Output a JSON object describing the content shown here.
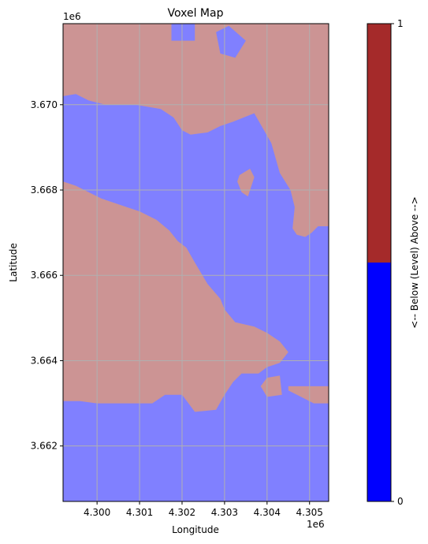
{
  "chart_data": {
    "type": "heatmap",
    "title": "Voxel Map",
    "xlabel": "Longitude",
    "ylabel": "Latitude",
    "x_offset_label": "1e6",
    "y_offset_label": "1e6",
    "xlim": [
      4299200,
      4305450
    ],
    "ylim": [
      3660700,
      3671900
    ],
    "x_ticks": [
      {
        "value": 4300000,
        "label": "4.300"
      },
      {
        "value": 4301000,
        "label": "4.301"
      },
      {
        "value": 4302000,
        "label": "4.302"
      },
      {
        "value": 4303000,
        "label": "4.303"
      },
      {
        "value": 4304000,
        "label": "4.304"
      },
      {
        "value": 4305000,
        "label": "4.305"
      }
    ],
    "y_ticks": [
      {
        "value": 3662000,
        "label": "3.662"
      },
      {
        "value": 3664000,
        "label": "3.664"
      },
      {
        "value": 3666000,
        "label": "3.666"
      },
      {
        "value": 3668000,
        "label": "3.668"
      },
      {
        "value": 3670000,
        "label": "3.670"
      }
    ],
    "grid": true,
    "classes": [
      {
        "value": 0,
        "color": "#8080ff"
      },
      {
        "value": 1,
        "color": "#cc9494"
      }
    ],
    "regions": [
      {
        "class": 1,
        "polygon": [
          [
            4299200,
            3671900
          ],
          [
            4301750,
            3671900
          ],
          [
            4301750,
            3671500
          ],
          [
            4302300,
            3671500
          ],
          [
            4302300,
            3671900
          ],
          [
            4305450,
            3671900
          ],
          [
            4305450,
            3667150
          ],
          [
            4305200,
            3667150
          ],
          [
            4305050,
            3667000
          ],
          [
            4304900,
            3666900
          ],
          [
            4304700,
            3666950
          ],
          [
            4304600,
            3667100
          ],
          [
            4304650,
            3667600
          ],
          [
            4304550,
            3668000
          ],
          [
            4304300,
            3668400
          ],
          [
            4304100,
            3669100
          ],
          [
            4303700,
            3669800
          ],
          [
            4303200,
            3669600
          ],
          [
            4302900,
            3669500
          ],
          [
            4302600,
            3669350
          ],
          [
            4302200,
            3669300
          ],
          [
            4302000,
            3669400
          ],
          [
            4301800,
            3669700
          ],
          [
            4301500,
            3669900
          ],
          [
            4301200,
            3669950
          ],
          [
            4300900,
            3670000
          ],
          [
            4300600,
            3670000
          ],
          [
            4300200,
            3670000
          ],
          [
            4299800,
            3670100
          ],
          [
            4299500,
            3670250
          ],
          [
            4299200,
            3670200
          ]
        ]
      },
      {
        "class": 0,
        "polygon": [
          [
            4302800,
            3671700
          ],
          [
            4303100,
            3671850
          ],
          [
            4303500,
            3671500
          ],
          [
            4303250,
            3671100
          ],
          [
            4302900,
            3671200
          ]
        ]
      },
      {
        "class": 1,
        "polygon": [
          [
            4299200,
            3668200
          ],
          [
            4299500,
            3668100
          ],
          [
            4300100,
            3667800
          ],
          [
            4300700,
            3667600
          ],
          [
            4301000,
            3667500
          ],
          [
            4301400,
            3667300
          ],
          [
            4301700,
            3667050
          ],
          [
            4301900,
            3666800
          ],
          [
            4302100,
            3666650
          ],
          [
            4302300,
            3666300
          ],
          [
            4302600,
            3665800
          ],
          [
            4302900,
            3665450
          ],
          [
            4303000,
            3665200
          ],
          [
            4303250,
            3664900
          ],
          [
            4303700,
            3664800
          ],
          [
            4304000,
            3664650
          ],
          [
            4304300,
            3664450
          ],
          [
            4304500,
            3664200
          ],
          [
            4304300,
            3663950
          ],
          [
            4304000,
            3663850
          ],
          [
            4303800,
            3663700
          ],
          [
            4303400,
            3663700
          ],
          [
            4303200,
            3663500
          ],
          [
            4303000,
            3663200
          ],
          [
            4302800,
            3662850
          ],
          [
            4302300,
            3662800
          ],
          [
            4302000,
            3663200
          ],
          [
            4301600,
            3663200
          ],
          [
            4301300,
            3663000
          ],
          [
            4300700,
            3663000
          ],
          [
            4300000,
            3663000
          ],
          [
            4299600,
            3663050
          ],
          [
            4299200,
            3663050
          ]
        ]
      },
      {
        "class": 1,
        "polygon": [
          [
            4304000,
            3663600
          ],
          [
            4304300,
            3663650
          ],
          [
            4304350,
            3663200
          ],
          [
            4304000,
            3663150
          ],
          [
            4303850,
            3663400
          ]
        ]
      },
      {
        "class": 1,
        "polygon": [
          [
            4304500,
            3663400
          ],
          [
            4305450,
            3663400
          ],
          [
            4305450,
            3663000
          ],
          [
            4305100,
            3663000
          ],
          [
            4304800,
            3663150
          ],
          [
            4304500,
            3663300
          ]
        ]
      },
      {
        "class": 1,
        "polygon": [
          [
            4303350,
            3668350
          ],
          [
            4303600,
            3668500
          ],
          [
            4303700,
            3668300
          ],
          [
            4303550,
            3667850
          ],
          [
            4303400,
            3667950
          ],
          [
            4303300,
            3668200
          ]
        ]
      }
    ],
    "colorbar": {
      "label": "<-- Below (Level) Above -->",
      "ticks": [
        {
          "value": 0,
          "label": "0"
        },
        {
          "value": 1,
          "label": "1"
        }
      ],
      "colors": [
        {
          "value": 0,
          "color": "#0000ff"
        },
        {
          "value": 1,
          "color": "#a52a2a"
        }
      ]
    }
  }
}
